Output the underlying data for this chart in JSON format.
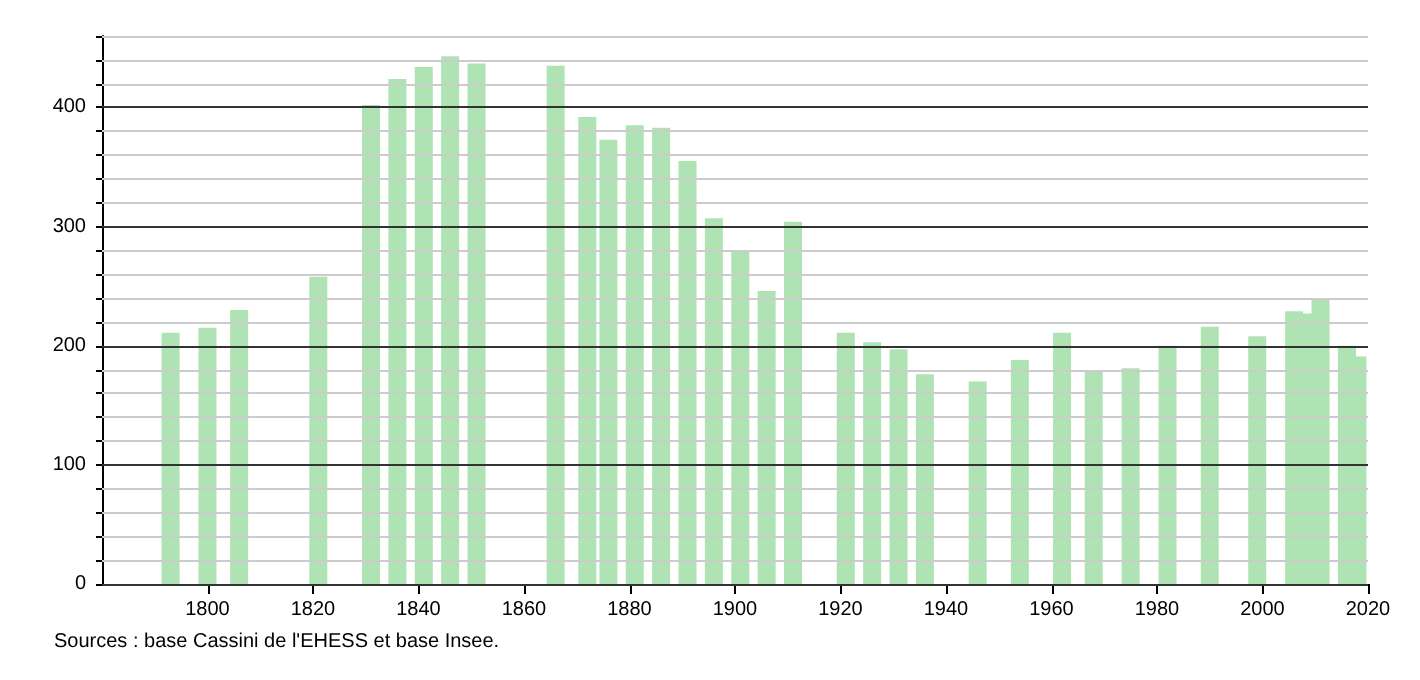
{
  "chart_data": {
    "type": "bar",
    "x": [
      1793,
      1800,
      1806,
      1821,
      1831,
      1836,
      1841,
      1846,
      1851,
      1866,
      1872,
      1876,
      1881,
      1886,
      1891,
      1896,
      1901,
      1906,
      1911,
      1921,
      1926,
      1931,
      1936,
      1946,
      1954,
      1962,
      1968,
      1975,
      1982,
      1990,
      1999,
      2006,
      2008,
      2011,
      2016,
      2018
    ],
    "values": [
      211,
      215,
      230,
      258,
      402,
      424,
      434,
      443,
      437,
      435,
      392,
      373,
      385,
      383,
      355,
      307,
      279,
      246,
      304,
      211,
      203,
      197,
      176,
      170,
      188,
      211,
      179,
      181,
      200,
      216,
      208,
      229,
      227,
      239,
      200,
      191
    ],
    "color": "#b0e3b4",
    "xlim": [
      1780,
      2020
    ],
    "xticks": [
      1800,
      1820,
      1840,
      1860,
      1880,
      1900,
      1920,
      1940,
      1960,
      1980,
      2000,
      2020
    ],
    "ylim": [
      0,
      460
    ],
    "yticks": [
      0,
      {
        "value": 20,
        "label": null
      },
      {
        "value": 40,
        "label": null
      },
      {
        "value": 60,
        "label": null
      },
      {
        "value": 80,
        "label": null
      },
      100,
      {
        "value": 120,
        "label": null
      },
      {
        "value": 140,
        "label": null
      },
      {
        "value": 160,
        "label": null
      },
      {
        "value": 180,
        "label": null
      },
      200,
      {
        "value": 220,
        "label": null
      },
      {
        "value": 240,
        "label": null
      },
      {
        "value": 260,
        "label": null
      },
      {
        "value": 280,
        "label": null
      },
      300,
      {
        "value": 320,
        "label": null
      },
      {
        "value": 340,
        "label": null
      },
      {
        "value": 360,
        "label": null
      },
      {
        "value": 380,
        "label": null
      },
      400,
      {
        "value": 420,
        "label": null
      },
      {
        "value": 440,
        "label": null
      },
      {
        "value": 460,
        "label": null
      }
    ],
    "grid": "y",
    "annotations": [
      "Sources : base Cassini de l'EHESS et base Insee."
    ]
  }
}
